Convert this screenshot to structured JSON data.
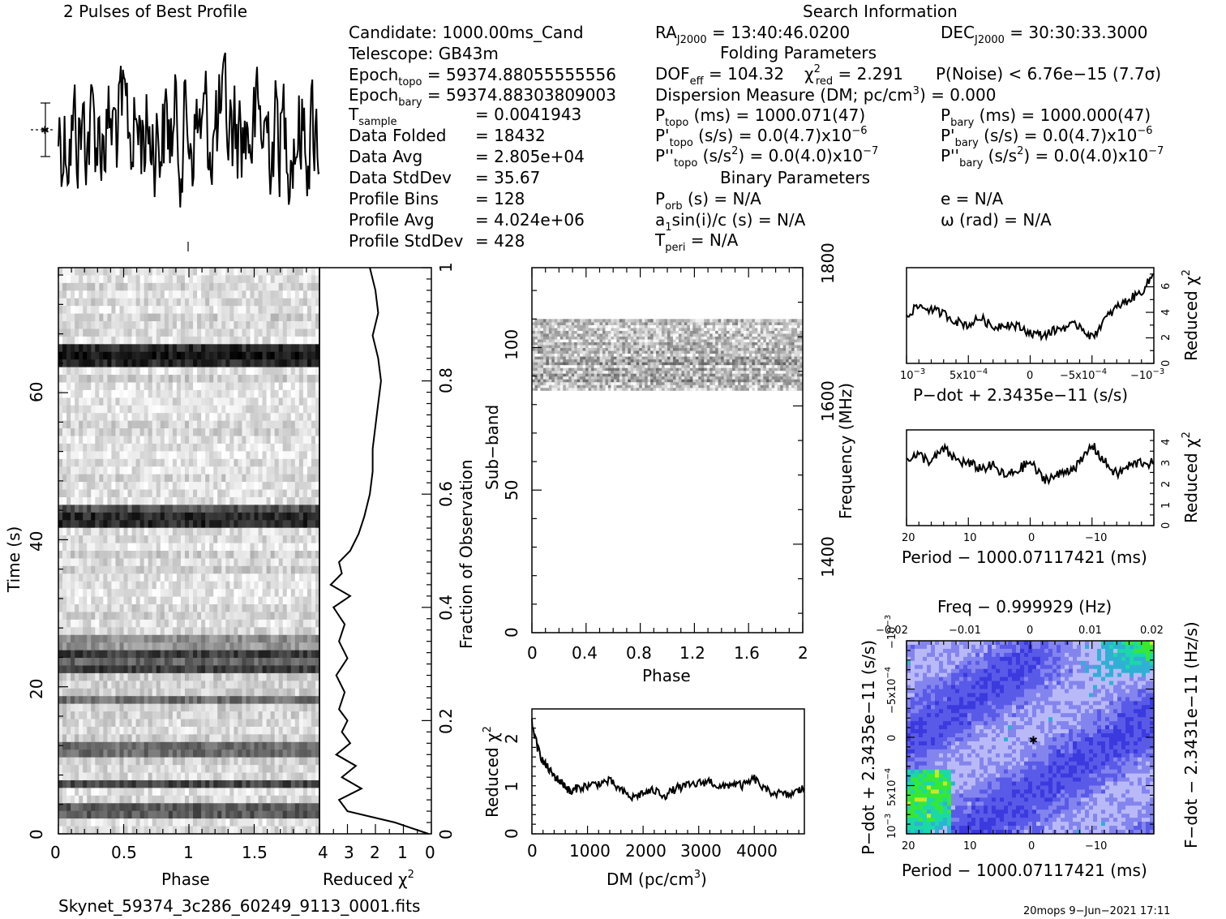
{
  "header": {
    "profile_title": "2 Pulses of Best Profile",
    "search_title": "Search Information",
    "folding_title": "Folding Parameters",
    "binary_title": "Binary Parameters"
  },
  "info": {
    "candidate": "Candidate:  1000.00ms_Cand",
    "telescope": "Telescope:  GB43m",
    "epoch_topo_label": "Epoch",
    "epoch_topo_sub": "topo",
    "epoch_topo_value": " = 59374.88055555556",
    "epoch_bary_label": "Epoch",
    "epoch_bary_sub": "bary",
    "epoch_bary_value": " = 59374.88303809003",
    "tsample_label": "T",
    "tsample_sub": "sample",
    "tsample_value": "=   0.0041943",
    "data_folded": "Data Folded",
    "data_folded_value": "=   18432",
    "data_avg": "Data Avg",
    "data_avg_value": "=   2.805e+04",
    "data_stddev": "Data StdDev",
    "data_stddev_value": "=   35.67",
    "profile_bins": "Profile Bins",
    "profile_bins_value": "=   128",
    "profile_avg": "Profile Avg",
    "profile_avg_value": "=   4.024e+06",
    "profile_stddev": "Profile StdDev",
    "profile_stddev_value": "=   428"
  },
  "search": {
    "ra_label": "RA",
    "ra_sub": "J2000",
    "ra_value": " = 13:40:46.0200",
    "dec_label": "DEC",
    "dec_sub": "J2000",
    "dec_value": " = 30:30:33.3000",
    "dof_label": "DOF",
    "dof_sub": "eff",
    "dof_value": " = 104.32",
    "chi_label": "χ",
    "chi_sup": "2",
    "chi_sub": "red",
    "chi_value": " = 2.291",
    "pnoise": "P(Noise) < 6.76e−15   (7.7σ)",
    "dm_line": "Dispersion Measure (DM; pc/cm",
    "dm_sup": "3",
    "dm_tail": ") = 0.000",
    "ptopo_label": "P",
    "ptopo_sub": "topo",
    "ptopo_value": " (ms) =   1000.071(47)",
    "pbary_label": "P",
    "pbary_sub": "bary",
    "pbary_value": " (ms) =   1000.000(47)",
    "pdtopo_label": "P'",
    "pdtopo_sub": "topo",
    "pdtopo_value": " (s/s) = 0.0(4.7)x10",
    "pdtopo_exp": "−6",
    "pdbary_label": "P'",
    "pdbary_sub": "bary",
    "pdbary_value": " (s/s) = 0.0(4.7)x10",
    "pdbary_exp": "−6",
    "pddtopo_label": "P''",
    "pddtopo_sub": "topo",
    "pddtopo_value": " (s/s",
    "pddtopo_sup": "2",
    "pddtopo_tail": ") = 0.0(4.0)x10",
    "pddtopo_exp": "−7",
    "pddbary_label": "P''",
    "pddbary_sub": "bary",
    "pddbary_value": " (s/s",
    "pddbary_sup": "2",
    "pddbary_tail": ") = 0.0(4.0)x10",
    "pddbary_exp": "−7",
    "porb_label": "P",
    "porb_sub": "orb",
    "porb_value": " (s) = N/A",
    "e_value": "e = N/A",
    "asini_label": "a",
    "asini_sub": "1",
    "asini_value": "sin(i)/c (s) = N/A",
    "omega_value": "ω (rad) = N/A",
    "tperi_label": "T",
    "tperi_sub": "peri",
    "tperi_value": " = N/A"
  },
  "footer": {
    "filename": "Skynet_59374_3c286_60249_9113_0001.fits",
    "stamp": "20mops  9−Jun−2021 17:11"
  },
  "chart_data": [
    {
      "type": "line",
      "name": "profile",
      "title": "2 Pulses of Best Profile",
      "x_range": [
        0,
        2
      ],
      "bins": 256,
      "shape": "noise"
    },
    {
      "type": "heatmap",
      "name": "time-phase",
      "xlabel": "Phase",
      "ylabel": "Time (s)",
      "xlim": [
        0,
        2
      ],
      "ylim": [
        0,
        77
      ],
      "x_ticks": [
        "0",
        "0.5",
        "1",
        "1.5"
      ],
      "y_ticks": [
        "0",
        "20",
        "40",
        "60"
      ],
      "right_ylabel": "Fraction of Observation",
      "right_ticks": [
        "0",
        "0.2",
        "0.4",
        "0.6",
        "0.8",
        "1"
      ]
    },
    {
      "type": "line",
      "name": "time-chi2",
      "xlabel": "Reduced χ",
      "xlabel_sup": "2",
      "x_ticks": [
        "4",
        "3",
        "2",
        "1",
        "0"
      ],
      "xlim": [
        4,
        0
      ],
      "fraction": [
        0,
        0.02,
        0.04,
        0.06,
        0.08,
        0.1,
        0.12,
        0.14,
        0.16,
        0.18,
        0.2,
        0.22,
        0.25,
        0.28,
        0.31,
        0.34,
        0.37,
        0.4,
        0.42,
        0.44,
        0.46,
        0.48,
        0.5,
        0.53,
        0.56,
        0.6,
        0.64,
        0.68,
        0.72,
        0.76,
        0.8,
        0.84,
        0.88,
        0.92,
        0.96,
        1.0
      ],
      "chi2": [
        0.1,
        1.3,
        3.0,
        3.3,
        2.5,
        3.2,
        2.7,
        3.4,
        2.9,
        3.2,
        3.0,
        3.3,
        3.1,
        3.4,
        3.0,
        3.3,
        3.1,
        3.5,
        2.9,
        3.6,
        3.2,
        3.3,
        2.9,
        2.6,
        2.4,
        2.2,
        2.1,
        2.1,
        2.0,
        1.9,
        1.8,
        1.9,
        2.1,
        1.9,
        2.0,
        2.2
      ]
    },
    {
      "type": "heatmap",
      "name": "subband-phase",
      "xlabel": "Phase",
      "ylabel": "Sub−band",
      "right_ylabel": "Frequency (MHz)",
      "x_ticks": [
        "0",
        "0.4",
        "0.8",
        "1.2",
        "1.6",
        "2"
      ],
      "y_ticks": [
        "0",
        "50",
        "100"
      ],
      "right_ticks": [
        "1400",
        "1600",
        "1800"
      ],
      "xlim": [
        0,
        2
      ],
      "ylim": [
        0,
        128
      ],
      "band_rows": [
        85,
        110
      ]
    },
    {
      "type": "line",
      "name": "dm-chi2",
      "xlabel": "DM (pc/cm",
      "xlabel_sup": "3",
      "xlabel_tail": ")",
      "ylabel": "Reduced χ",
      "ylabel_sup": "2",
      "x_ticks": [
        "0",
        "1000",
        "2000",
        "3000",
        "4000"
      ],
      "y_ticks": [
        "0",
        "1",
        "2"
      ],
      "xlim": [
        0,
        4900
      ],
      "ylim": [
        0,
        2.6
      ],
      "x": [
        0,
        100,
        200,
        300,
        400,
        500,
        600,
        700,
        800,
        1000,
        1200,
        1400,
        1600,
        1800,
        2000,
        2200,
        2400,
        2600,
        2800,
        3000,
        3200,
        3400,
        3600,
        3800,
        4000,
        4200,
        4400,
        4600,
        4800,
        4900
      ],
      "y": [
        2.3,
        1.8,
        1.5,
        1.35,
        1.2,
        1.1,
        1.0,
        0.85,
        0.95,
        1.0,
        1.05,
        1.1,
        0.9,
        0.75,
        0.85,
        0.9,
        0.8,
        0.95,
        1.0,
        1.05,
        1.1,
        0.95,
        1.05,
        1.0,
        1.15,
        0.9,
        0.85,
        0.8,
        0.9,
        0.95
      ]
    },
    {
      "type": "line",
      "name": "pdot-chi2",
      "xlabel": "P−dot + 2.3435e−11 (s/s)",
      "ylabel": "Reduced χ",
      "ylabel_sup": "2",
      "x_ticks": [
        "10",
        "5x10",
        "0",
        "−5x10",
        "−10"
      ],
      "x_tick_exps": [
        "−3",
        "−4",
        "",
        "−4",
        "−3"
      ],
      "y_ticks": [
        "0",
        "2",
        "4",
        "6"
      ],
      "xlim": [
        0.001,
        -0.001
      ],
      "ylim": [
        0,
        7.5
      ],
      "x": [
        0.001,
        0.0009,
        0.0008,
        0.0007,
        0.0006,
        0.0005,
        0.0004,
        0.0003,
        0.0002,
        0.0001,
        0,
        -0.0001,
        -0.0002,
        -0.0003,
        -0.0004,
        -0.0005,
        -0.0006,
        -0.0007,
        -0.0008,
        -0.0009,
        -0.001
      ],
      "y": [
        3.8,
        4.5,
        4.2,
        3.9,
        3.3,
        3.0,
        3.6,
        2.8,
        3.1,
        2.9,
        2.4,
        2.2,
        2.6,
        2.9,
        3.0,
        2.0,
        3.4,
        4.4,
        5.0,
        5.6,
        7.0
      ]
    },
    {
      "type": "line",
      "name": "period-chi2",
      "xlabel": "Period − 1000.07117421 (ms)",
      "ylabel": "Reduced χ",
      "ylabel_sup": "2",
      "x_ticks": [
        "20",
        "10",
        "0",
        "−10"
      ],
      "y_ticks": [
        "0",
        "1",
        "2",
        "3",
        "4"
      ],
      "xlim": [
        20,
        -20
      ],
      "ylim": [
        0,
        4.5
      ],
      "x": [
        20,
        18,
        16,
        14,
        12,
        10,
        8,
        6,
        4,
        2,
        0,
        -2,
        -4,
        -6,
        -8,
        -10,
        -12,
        -14,
        -16,
        -18,
        -20
      ],
      "y": [
        3.2,
        3.3,
        3.0,
        3.6,
        3.1,
        2.9,
        2.7,
        2.8,
        2.3,
        2.6,
        3.0,
        2.2,
        2.3,
        2.6,
        2.9,
        3.8,
        3.0,
        2.4,
        2.8,
        3.0,
        2.9
      ]
    },
    {
      "type": "heatmap",
      "name": "period-pdot",
      "title": "Freq − 0.999929 (Hz)",
      "xlabel": "Period − 1000.07117421 (ms)",
      "ylabel": "P−dot + 2.3435e−11 (s/s)",
      "right_ylabel": "F−dot − 2.3431e−11 (Hz/s)",
      "x_ticks": [
        "20",
        "10",
        "0",
        "−10"
      ],
      "top_ticks": [
        "−0.02",
        "−0.01",
        "0",
        "0.01",
        "0.02"
      ],
      "y_ticks": [
        "10",
        "5x10",
        "0",
        "−5x10",
        "−10"
      ],
      "y_tick_exps": [
        "−3",
        "−4",
        "",
        "−4",
        "−3"
      ],
      "colors": [
        "#3a3adf",
        "#5a5ae8",
        "#8484ef",
        "#b9b9f7",
        "#2fb0d4",
        "#1bd8a8",
        "#36e836",
        "#c8e826",
        "#ffcc00",
        "#ff6a00",
        "#e02020"
      ]
    }
  ]
}
